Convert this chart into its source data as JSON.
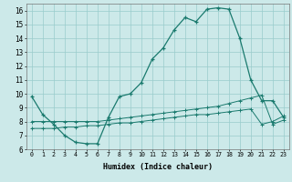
{
  "xlabel": "Humidex (Indice chaleur)",
  "xlim": [
    -0.5,
    23.5
  ],
  "ylim": [
    6,
    16.5
  ],
  "background_color": "#cce9e9",
  "line_color": "#1a7a6e",
  "grid_color": "#99cccc",
  "line1_x": [
    0,
    1,
    2,
    3,
    4,
    5,
    6,
    7,
    8,
    9,
    10,
    11,
    12,
    13,
    14,
    15,
    16,
    17,
    18,
    19,
    20,
    21,
    22,
    23
  ],
  "line1_y": [
    9.8,
    8.5,
    7.8,
    7.0,
    6.5,
    6.4,
    6.4,
    8.3,
    9.8,
    10.0,
    10.8,
    12.5,
    13.3,
    14.6,
    15.5,
    15.2,
    16.1,
    16.2,
    16.1,
    14.0,
    11.0,
    9.5,
    9.5,
    8.3
  ],
  "line2_x": [
    0,
    1,
    2,
    3,
    4,
    5,
    6,
    7,
    8,
    9,
    10,
    11,
    12,
    13,
    14,
    15,
    16,
    17,
    18,
    19,
    20,
    21,
    22,
    23
  ],
  "line2_y": [
    8.0,
    8.0,
    8.0,
    8.0,
    8.0,
    8.0,
    8.0,
    8.1,
    8.2,
    8.3,
    8.4,
    8.5,
    8.6,
    8.7,
    8.8,
    8.9,
    9.0,
    9.1,
    9.3,
    9.5,
    9.7,
    9.9,
    7.8,
    8.1
  ],
  "line3_x": [
    0,
    1,
    2,
    3,
    4,
    5,
    6,
    7,
    8,
    9,
    10,
    11,
    12,
    13,
    14,
    15,
    16,
    17,
    18,
    19,
    20,
    21,
    22,
    23
  ],
  "line3_y": [
    7.5,
    7.5,
    7.5,
    7.6,
    7.6,
    7.7,
    7.7,
    7.8,
    7.9,
    7.9,
    8.0,
    8.1,
    8.2,
    8.3,
    8.4,
    8.5,
    8.5,
    8.6,
    8.7,
    8.8,
    8.9,
    7.8,
    8.0,
    8.4
  ]
}
